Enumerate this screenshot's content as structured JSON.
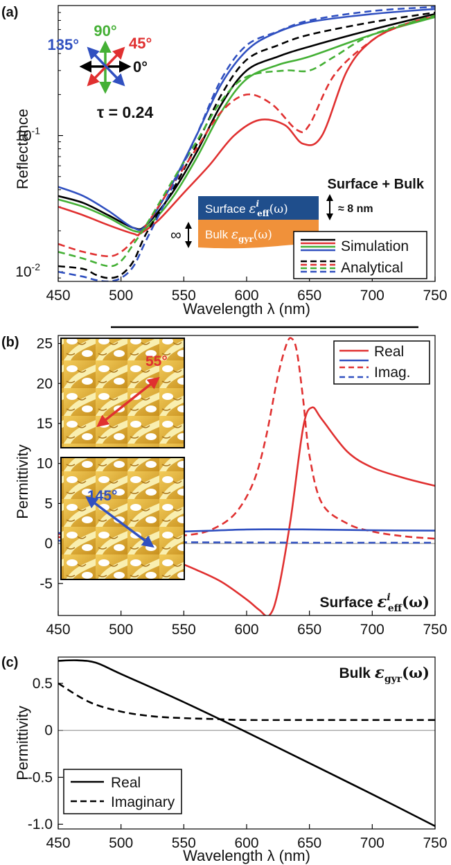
{
  "chart_data": [
    {
      "type": "line",
      "panel": "(a)",
      "xlabel": "Wavelength λ (nm)",
      "ylabel": "Reflectance",
      "y_scale": "log",
      "xlim": [
        450,
        750
      ],
      "ylim": [
        0.0085,
        0.9
      ],
      "x_ticks": [
        450,
        500,
        550,
        600,
        650,
        700,
        750
      ],
      "y_ticks": [
        {
          "value": 0.01,
          "label": "10",
          "sup": "-2"
        },
        {
          "value": 0.1,
          "label": "10",
          "sup": "-1"
        }
      ],
      "annotations": {
        "tau": "τ = 0.24",
        "angle_0": "0°",
        "angle_45": "45°",
        "angle_90": "90°",
        "angle_135": "135°",
        "model_title": "Surface + Bulk",
        "surface_layer": "Surface",
        "surface_symbol": "ε",
        "surface_sup": "i",
        "surface_sub": "eff",
        "surface_arg": "(ω)",
        "bulk_layer": "Bulk",
        "bulk_symbol": "ε",
        "bulk_sub": "gyr",
        "bulk_arg": "(ω)",
        "thickness_surface": "≈ 8 nm",
        "thickness_bulk": "∞"
      },
      "legend": {
        "position": "bottom-right",
        "entries": [
          "Simulation",
          "Analytical"
        ]
      },
      "colors": {
        "0": "#000000",
        "45": "#e03030",
        "90": "#44b035",
        "135": "#3050c0",
        "surface_fill": "#1f4e8c",
        "bulk_fill": "#f0913a"
      },
      "series": [
        {
          "angle": "0",
          "style": "solid",
          "x": [
            450,
            470,
            490,
            510,
            520,
            540,
            560,
            580,
            600,
            625,
            650,
            700,
            750
          ],
          "y": [
            0.036,
            0.032,
            0.026,
            0.021,
            0.022,
            0.037,
            0.075,
            0.17,
            0.3,
            0.38,
            0.45,
            0.6,
            0.78
          ]
        },
        {
          "angle": "45",
          "style": "solid",
          "x": [
            450,
            470,
            490,
            510,
            515,
            530,
            550,
            570,
            590,
            610,
            630,
            645,
            660,
            680,
            700,
            725,
            750
          ],
          "y": [
            0.03,
            0.026,
            0.022,
            0.019,
            0.019,
            0.024,
            0.038,
            0.06,
            0.1,
            0.13,
            0.12,
            0.087,
            0.1,
            0.3,
            0.5,
            0.65,
            0.75
          ]
        },
        {
          "angle": "90",
          "style": "solid",
          "x": [
            450,
            470,
            490,
            510,
            520,
            540,
            560,
            580,
            600,
            625,
            650,
            700,
            750
          ],
          "y": [
            0.034,
            0.03,
            0.025,
            0.02,
            0.021,
            0.034,
            0.068,
            0.15,
            0.26,
            0.33,
            0.38,
            0.55,
            0.74
          ]
        },
        {
          "angle": "135",
          "style": "solid",
          "x": [
            450,
            470,
            490,
            510,
            520,
            540,
            560,
            580,
            600,
            620,
            650,
            700,
            750
          ],
          "y": [
            0.042,
            0.036,
            0.028,
            0.021,
            0.022,
            0.043,
            0.1,
            0.24,
            0.42,
            0.55,
            0.68,
            0.78,
            0.85
          ]
        },
        {
          "angle": "0",
          "style": "dashed",
          "x": [
            450,
            470,
            480,
            490,
            500,
            510,
            520,
            540,
            560,
            580,
            600,
            625,
            650,
            700,
            750
          ],
          "y": [
            0.011,
            0.0105,
            0.0095,
            0.009,
            0.0095,
            0.012,
            0.019,
            0.038,
            0.085,
            0.2,
            0.36,
            0.46,
            0.55,
            0.68,
            0.8
          ]
        },
        {
          "angle": "45",
          "style": "dashed",
          "x": [
            450,
            470,
            490,
            500,
            510,
            520,
            540,
            560,
            580,
            600,
            620,
            640,
            650,
            670,
            700,
            725,
            750
          ],
          "y": [
            0.016,
            0.014,
            0.013,
            0.014,
            0.017,
            0.022,
            0.042,
            0.08,
            0.15,
            0.2,
            0.17,
            0.11,
            0.12,
            0.28,
            0.5,
            0.65,
            0.76
          ]
        },
        {
          "angle": "90",
          "style": "dashed",
          "x": [
            450,
            470,
            490,
            500,
            510,
            520,
            540,
            560,
            580,
            600,
            630,
            650,
            670,
            700,
            750
          ],
          "y": [
            0.014,
            0.0125,
            0.011,
            0.012,
            0.016,
            0.022,
            0.045,
            0.09,
            0.18,
            0.27,
            0.3,
            0.3,
            0.38,
            0.55,
            0.76
          ]
        },
        {
          "angle": "135",
          "style": "dashed",
          "x": [
            450,
            470,
            480,
            490,
            500,
            510,
            520,
            540,
            560,
            580,
            600,
            625,
            650,
            700,
            750
          ],
          "y": [
            0.01,
            0.0092,
            0.0087,
            0.0085,
            0.009,
            0.011,
            0.017,
            0.04,
            0.1,
            0.26,
            0.46,
            0.58,
            0.7,
            0.82,
            0.88
          ]
        }
      ]
    },
    {
      "type": "line",
      "panel": "(b)",
      "ylabel": "Permittivity",
      "xlim": [
        450,
        750
      ],
      "ylim": [
        -9,
        26
      ],
      "x_ticks": [
        450,
        500,
        550,
        600,
        650,
        700,
        750
      ],
      "y_ticks": [
        -5,
        0,
        5,
        10,
        15,
        20,
        25
      ],
      "annotations": {
        "title": "Surface",
        "symbol": "ε",
        "sup": "i",
        "sub": "eff",
        "arg": "(ω)",
        "inset_angle_1": "55°",
        "inset_angle_2": "145°"
      },
      "legend": {
        "position": "top-right",
        "entries": [
          "Real",
          "Imag."
        ]
      },
      "colors": {
        "red": "#e03030",
        "blue": "#3050c0"
      },
      "series": [
        {
          "name": "Real",
          "color": "red",
          "style": "solid",
          "x": [
            450,
            480,
            500,
            520,
            540,
            560,
            580,
            600,
            610,
            618,
            625,
            635,
            645,
            652,
            660,
            680,
            700,
            725,
            750
          ],
          "y": [
            1.2,
            0.8,
            0.2,
            -0.8,
            -2.0,
            -3.3,
            -4.8,
            -7.0,
            -8.3,
            -9.0,
            -6.0,
            3.0,
            14.5,
            17.0,
            15.5,
            11.5,
            9.5,
            8.2,
            7.2
          ]
        },
        {
          "name": "Imag.",
          "color": "red",
          "style": "dashed",
          "x": [
            450,
            500,
            530,
            550,
            570,
            590,
            605,
            615,
            625,
            632,
            636,
            640,
            645,
            650,
            660,
            680,
            700,
            725,
            750
          ],
          "y": [
            0.8,
            0.6,
            0.7,
            1.0,
            1.6,
            3.6,
            7.5,
            13.0,
            21.0,
            25.0,
            25.6,
            24.0,
            18.0,
            11.0,
            5.0,
            2.5,
            1.5,
            0.9,
            0.6
          ]
        },
        {
          "name": "Real",
          "color": "blue",
          "style": "solid",
          "x": [
            450,
            550,
            600,
            650,
            700,
            750
          ],
          "y": [
            1.3,
            1.5,
            1.75,
            1.75,
            1.65,
            1.6
          ]
        },
        {
          "name": "Imag.",
          "color": "blue",
          "style": "dashed",
          "x": [
            450,
            500,
            550,
            600,
            650,
            700,
            750
          ],
          "y": [
            0.35,
            0.2,
            0.15,
            0.12,
            0.1,
            0.1,
            0.1
          ]
        }
      ]
    },
    {
      "type": "line",
      "panel": "(c)",
      "xlabel": "Wavelength λ (nm)",
      "ylabel": "Permittivity",
      "xlim": [
        450,
        750
      ],
      "ylim": [
        -1.05,
        0.78
      ],
      "x_ticks": [
        450,
        500,
        550,
        600,
        650,
        700,
        750
      ],
      "y_ticks": [
        {
          "value": -1.0,
          "label": "-1.0"
        },
        {
          "value": -0.5,
          "label": "-0.5"
        },
        {
          "value": 0,
          "label": "0"
        },
        {
          "value": 0.5,
          "label": "0.5"
        }
      ],
      "annotations": {
        "title": "Bulk",
        "symbol": "ε",
        "sub": "gyr",
        "arg": "(ω)"
      },
      "legend": {
        "position": "bottom-left",
        "entries": [
          "Real",
          "Imaginary"
        ]
      },
      "series": [
        {
          "name": "Real",
          "style": "solid",
          "x": [
            450,
            465,
            480,
            500,
            550,
            600,
            650,
            700,
            750
          ],
          "y": [
            0.74,
            0.745,
            0.72,
            0.6,
            0.3,
            -0.02,
            -0.35,
            -0.68,
            -1.02
          ]
        },
        {
          "name": "Imaginary",
          "style": "dashed",
          "x": [
            450,
            475,
            500,
            525,
            550,
            575,
            600,
            650,
            700,
            750
          ],
          "y": [
            0.5,
            0.3,
            0.2,
            0.15,
            0.13,
            0.12,
            0.11,
            0.11,
            0.11,
            0.11
          ]
        }
      ]
    }
  ]
}
